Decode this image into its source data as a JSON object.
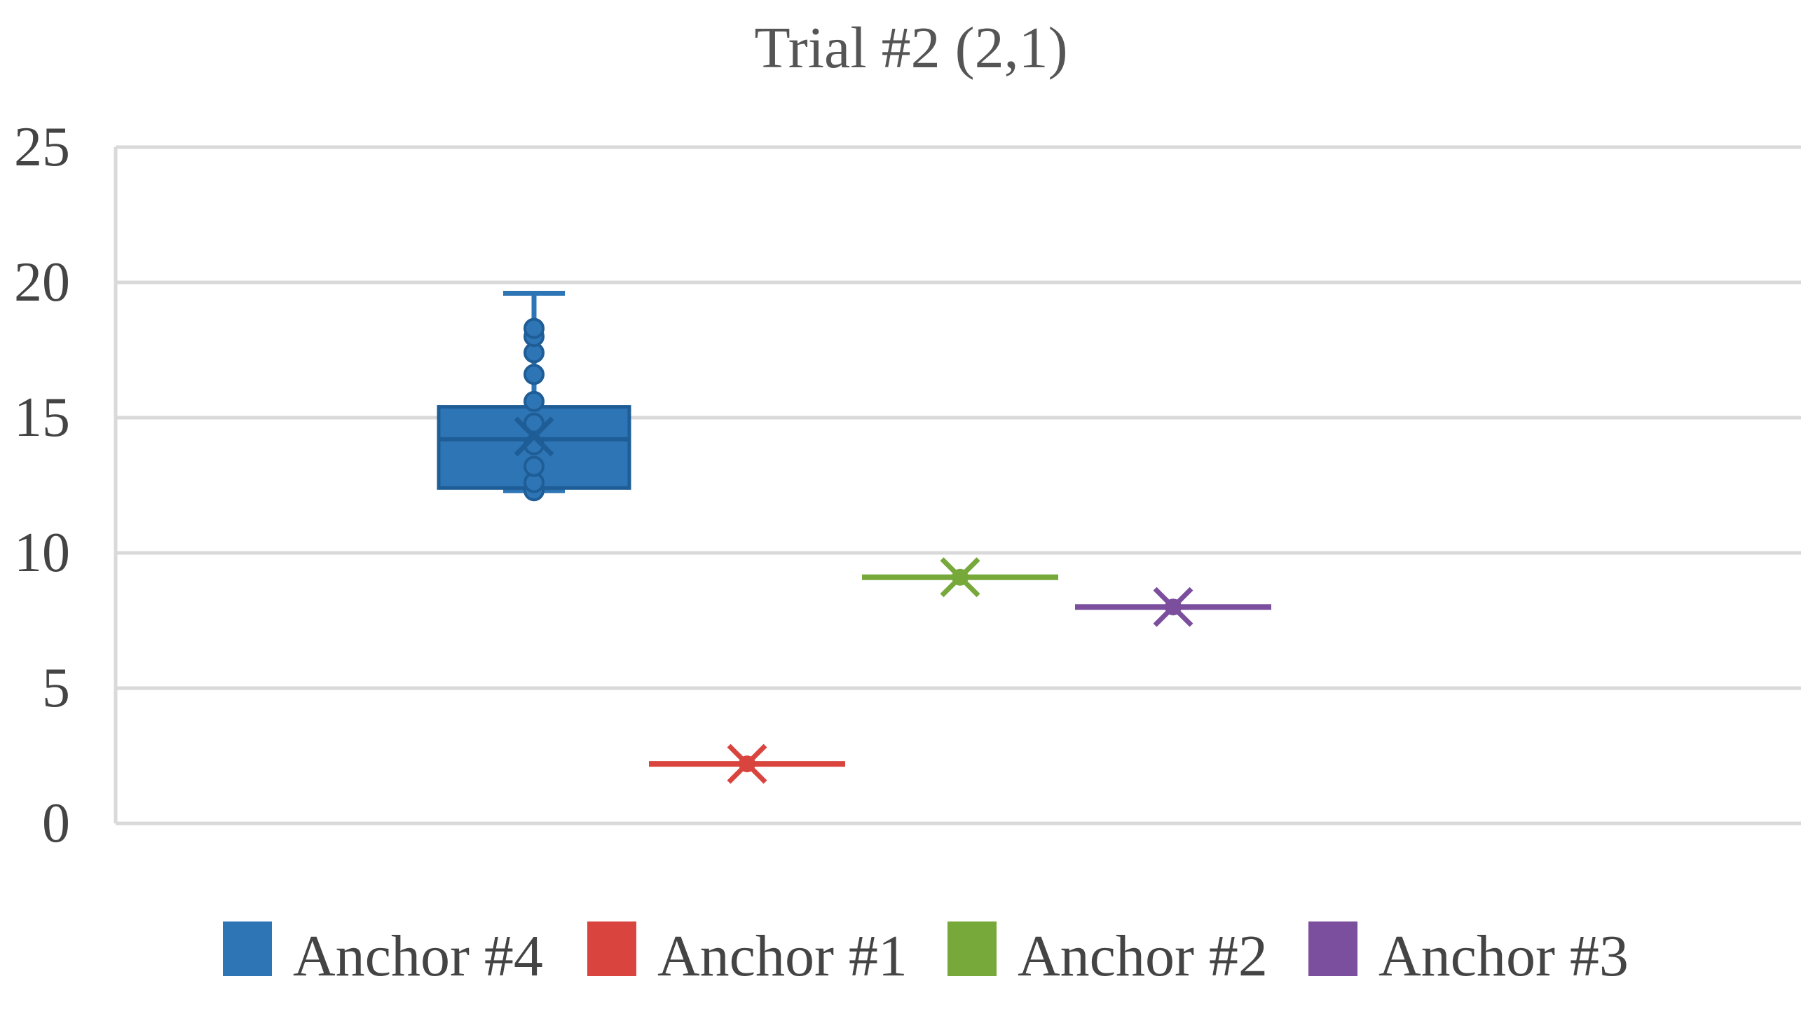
{
  "chart_data": {
    "type": "box",
    "title": "Trial #2 (2,1)",
    "xlabel": "",
    "ylabel": "",
    "ylim": [
      0,
      25
    ],
    "yticks": [
      0,
      5,
      10,
      15,
      20,
      25
    ],
    "grid": true,
    "legend_position": "bottom",
    "series": [
      {
        "name": "Anchor #4",
        "color": "#2E75B6",
        "min": 12.3,
        "q1": 12.4,
        "median": 14.2,
        "q3": 15.4,
        "max": 19.6,
        "mean": 14.3,
        "points": [
          12.3,
          12.6,
          13.2,
          14.0,
          14.8,
          15.6,
          16.6,
          17.4,
          18.0,
          18.3
        ]
      },
      {
        "name": "Anchor #1",
        "color": "#D9443F",
        "min": 2.2,
        "q1": 2.2,
        "median": 2.2,
        "q3": 2.2,
        "max": 2.2,
        "mean": 2.2,
        "points": [
          2.2
        ]
      },
      {
        "name": "Anchor #2",
        "color": "#76A83A",
        "min": 9.1,
        "q1": 9.1,
        "median": 9.1,
        "q3": 9.1,
        "max": 9.1,
        "mean": 9.1,
        "points": [
          9.1
        ]
      },
      {
        "name": "Anchor #3",
        "color": "#7B4F9D",
        "min": 8.0,
        "q1": 8.0,
        "median": 8.0,
        "q3": 8.0,
        "max": 8.0,
        "mean": 8.0,
        "points": [
          8.0
        ]
      }
    ]
  }
}
